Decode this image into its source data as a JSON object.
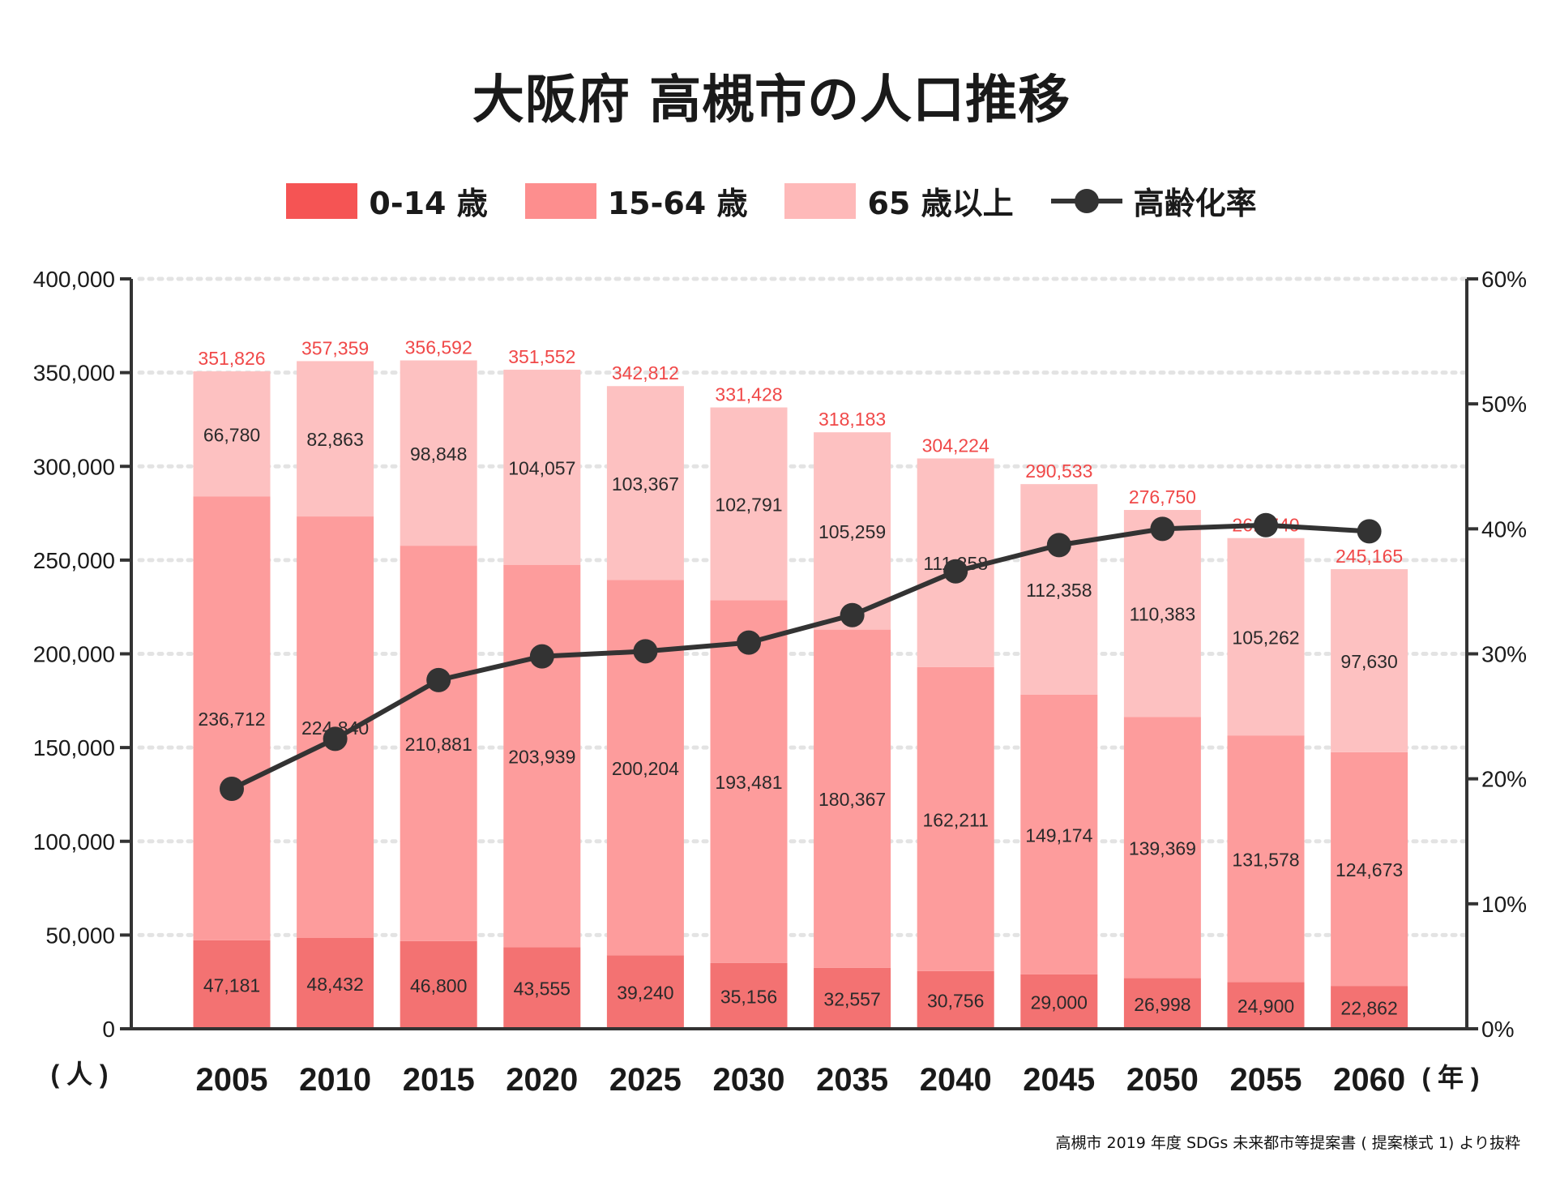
{
  "chart_data": {
    "type": "bar",
    "stacked": true,
    "title": "大阪府 高槻市の人口推移",
    "categories": [
      "2005",
      "2010",
      "2015",
      "2020",
      "2025",
      "2030",
      "2035",
      "2040",
      "2045",
      "2050",
      "2055",
      "2060"
    ],
    "series": [
      {
        "name": "0-14 歳",
        "color": "#f37272",
        "values": [
          47181,
          48432,
          46800,
          43555,
          39240,
          35156,
          32557,
          30756,
          29000,
          26998,
          24900,
          22862
        ]
      },
      {
        "name": "15-64 歳",
        "color": "#fd9c9c",
        "values": [
          236712,
          224840,
          210881,
          203939,
          200204,
          193481,
          180367,
          162211,
          149174,
          139369,
          131578,
          124673
        ]
      },
      {
        "name": "65 歳以上",
        "color": "#fdc1c1",
        "values": [
          66780,
          82863,
          98848,
          104057,
          103367,
          102791,
          105259,
          111258,
          112358,
          110383,
          105262,
          97630
        ]
      }
    ],
    "totals": [
      351826,
      357359,
      356592,
      351552,
      342812,
      331428,
      318183,
      304224,
      290533,
      276750,
      261740,
      245165
    ],
    "line_series": {
      "name": "高齢化率",
      "axis": "right",
      "values": [
        19.2,
        23.2,
        27.9,
        29.8,
        30.2,
        30.9,
        33.1,
        36.6,
        38.7,
        40.0,
        40.3,
        39.8
      ]
    },
    "ylim": [
      0,
      400000
    ],
    "y2lim": [
      0,
      60
    ],
    "yticks": [
      "0",
      "50,000",
      "100,000",
      "150,000",
      "200,000",
      "250,000",
      "300,000",
      "350,000",
      "400,000"
    ],
    "y2ticks": [
      "0%",
      "10%",
      "20%",
      "30%",
      "40%",
      "50%",
      "60%"
    ],
    "ylabel": "( 人 )",
    "xlabel": "( 年 )",
    "grid": true,
    "legend": "top-center"
  },
  "legend_colors": [
    "#f55454",
    "#fd8e8e",
    "#feb9b9"
  ],
  "source": "高槻市 2019 年度 SDGs 未来都市等提案書 ( 提案様式 1) より抜粋"
}
